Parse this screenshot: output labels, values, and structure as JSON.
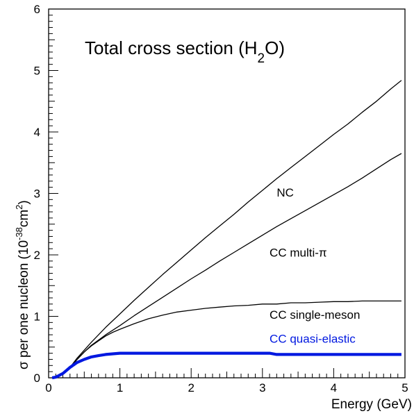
{
  "chart_data": {
    "type": "line",
    "title": "Total cross section (H",
    "title_subscript": "2",
    "title_end": "O)",
    "xlabel": "Energy (GeV)",
    "ylabel_main": "σ per one nucleon (10",
    "ylabel_sup1": "-38",
    "ylabel_mid": "cm",
    "ylabel_sup2": "2",
    "ylabel_end": ")",
    "xlim": [
      0,
      5
    ],
    "ylim": [
      0,
      6
    ],
    "x_ticks": [
      "0",
      "1",
      "2",
      "3",
      "4",
      "5"
    ],
    "y_ticks": [
      "0",
      "1",
      "2",
      "3",
      "4",
      "5",
      "6"
    ],
    "grid": false,
    "series": [
      {
        "name": "NC",
        "color": "#000000",
        "width": 1.3,
        "points": [
          [
            0.05,
            0
          ],
          [
            0.1,
            0.01
          ],
          [
            0.2,
            0.06
          ],
          [
            0.3,
            0.17
          ],
          [
            0.4,
            0.32
          ],
          [
            0.5,
            0.45
          ],
          [
            0.6,
            0.58
          ],
          [
            0.8,
            0.82
          ],
          [
            1.0,
            1.04
          ],
          [
            1.2,
            1.26
          ],
          [
            1.4,
            1.47
          ],
          [
            1.6,
            1.68
          ],
          [
            1.8,
            1.88
          ],
          [
            2.0,
            2.08
          ],
          [
            2.2,
            2.28
          ],
          [
            2.4,
            2.47
          ],
          [
            2.6,
            2.66
          ],
          [
            2.8,
            2.86
          ],
          [
            3.0,
            3.05
          ],
          [
            3.2,
            3.24
          ],
          [
            3.4,
            3.42
          ],
          [
            3.6,
            3.6
          ],
          [
            3.8,
            3.78
          ],
          [
            4.0,
            3.96
          ],
          [
            4.2,
            4.13
          ],
          [
            4.4,
            4.32
          ],
          [
            4.6,
            4.5
          ],
          [
            4.8,
            4.7
          ],
          [
            4.95,
            4.84
          ]
        ]
      },
      {
        "name": "CC multi-π",
        "color": "#000000",
        "width": 1.3,
        "points": [
          [
            0.05,
            0
          ],
          [
            0.1,
            0.01
          ],
          [
            0.2,
            0.06
          ],
          [
            0.3,
            0.16
          ],
          [
            0.4,
            0.3
          ],
          [
            0.5,
            0.42
          ],
          [
            0.6,
            0.53
          ],
          [
            0.8,
            0.7
          ],
          [
            1.0,
            0.85
          ],
          [
            1.2,
            1.01
          ],
          [
            1.4,
            1.16
          ],
          [
            1.6,
            1.31
          ],
          [
            1.8,
            1.46
          ],
          [
            2.0,
            1.61
          ],
          [
            2.2,
            1.75
          ],
          [
            2.4,
            1.9
          ],
          [
            2.6,
            2.04
          ],
          [
            2.8,
            2.18
          ],
          [
            3.0,
            2.32
          ],
          [
            3.2,
            2.46
          ],
          [
            3.4,
            2.59
          ],
          [
            3.6,
            2.72
          ],
          [
            3.8,
            2.85
          ],
          [
            4.0,
            2.98
          ],
          [
            4.2,
            3.11
          ],
          [
            4.4,
            3.25
          ],
          [
            4.6,
            3.4
          ],
          [
            4.8,
            3.55
          ],
          [
            4.95,
            3.65
          ]
        ]
      },
      {
        "name": "CC single-meson",
        "color": "#000000",
        "width": 1.3,
        "points": [
          [
            0.05,
            0
          ],
          [
            0.1,
            0.01
          ],
          [
            0.2,
            0.06
          ],
          [
            0.3,
            0.16
          ],
          [
            0.4,
            0.3
          ],
          [
            0.5,
            0.42
          ],
          [
            0.6,
            0.52
          ],
          [
            0.7,
            0.6
          ],
          [
            0.8,
            0.68
          ],
          [
            0.9,
            0.74
          ],
          [
            1.0,
            0.79
          ],
          [
            1.2,
            0.88
          ],
          [
            1.4,
            0.96
          ],
          [
            1.6,
            1.02
          ],
          [
            1.8,
            1.07
          ],
          [
            2.0,
            1.1
          ],
          [
            2.2,
            1.13
          ],
          [
            2.4,
            1.15
          ],
          [
            2.6,
            1.17
          ],
          [
            2.8,
            1.18
          ],
          [
            3.0,
            1.2
          ],
          [
            3.2,
            1.2
          ],
          [
            3.4,
            1.22
          ],
          [
            3.6,
            1.22
          ],
          [
            3.8,
            1.23
          ],
          [
            4.0,
            1.24
          ],
          [
            4.2,
            1.24
          ],
          [
            4.4,
            1.25
          ],
          [
            4.6,
            1.25
          ],
          [
            4.95,
            1.25
          ]
        ]
      },
      {
        "name": "CC quasi-elastic",
        "color": "#0018e0",
        "width": 4.2,
        "points": [
          [
            0.05,
            0
          ],
          [
            0.1,
            0.01
          ],
          [
            0.2,
            0.07
          ],
          [
            0.3,
            0.17
          ],
          [
            0.4,
            0.25
          ],
          [
            0.5,
            0.3
          ],
          [
            0.6,
            0.34
          ],
          [
            0.7,
            0.36
          ],
          [
            0.8,
            0.38
          ],
          [
            0.9,
            0.39
          ],
          [
            1.0,
            0.4
          ],
          [
            1.5,
            0.4
          ],
          [
            2.0,
            0.4
          ],
          [
            2.5,
            0.4
          ],
          [
            3.0,
            0.4
          ],
          [
            3.1,
            0.4
          ],
          [
            3.2,
            0.38
          ],
          [
            3.5,
            0.38
          ],
          [
            4.0,
            0.38
          ],
          [
            4.5,
            0.38
          ],
          [
            4.95,
            0.38
          ]
        ]
      }
    ],
    "series_labels": [
      {
        "text": "NC",
        "x": 3.2,
        "y": 2.95,
        "color": "#000000"
      },
      {
        "text": "CC multi-π",
        "x": 3.1,
        "y": 1.97,
        "color": "#000000"
      },
      {
        "text": "CC single-meson",
        "x": 3.1,
        "y": 0.96,
        "color": "#000000"
      },
      {
        "text": "CC quasi-elastic",
        "x": 3.1,
        "y": 0.57,
        "color": "#0018e0"
      }
    ]
  }
}
